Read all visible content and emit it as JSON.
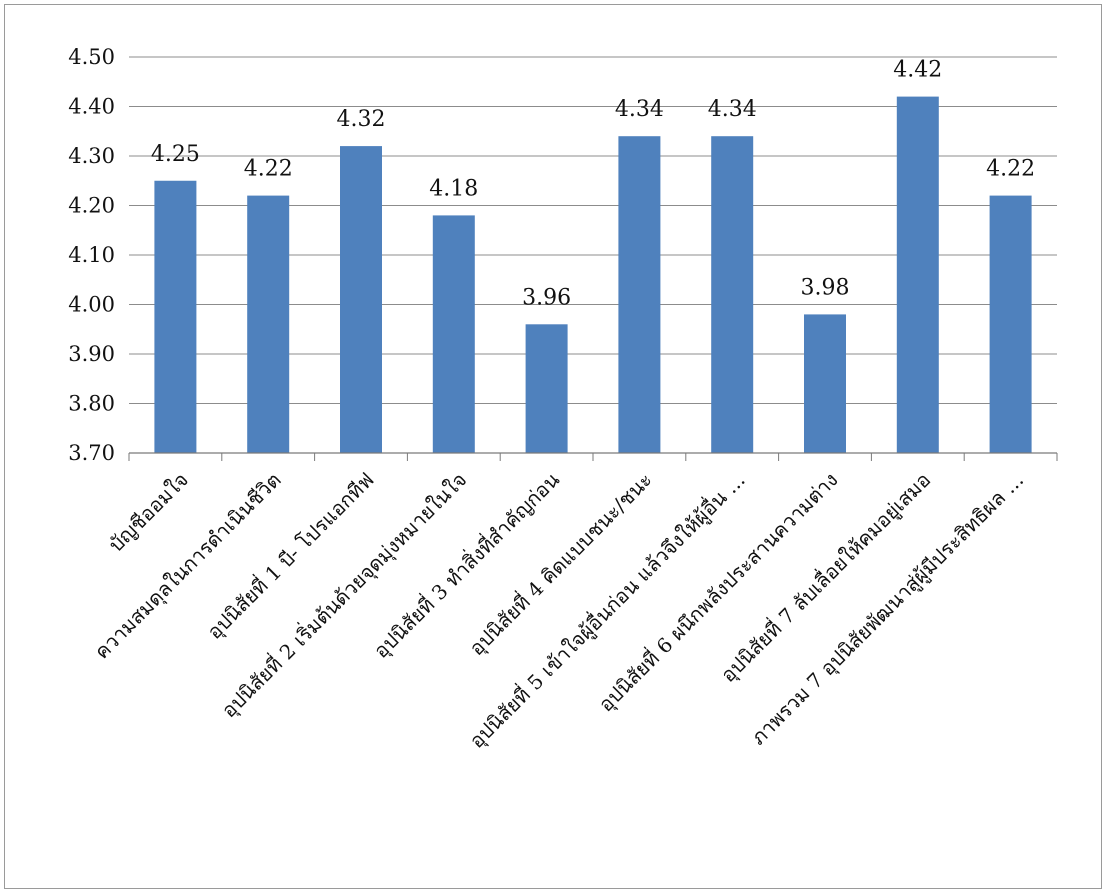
{
  "chart_data": {
    "type": "bar",
    "title": "",
    "xlabel": "",
    "ylabel": "",
    "ylim": [
      3.7,
      4.5
    ],
    "ytick_step": 0.1,
    "yticks": [
      "3.70",
      "3.80",
      "3.90",
      "4.00",
      "4.10",
      "4.20",
      "4.30",
      "4.40",
      "4.50"
    ],
    "grid": true,
    "legend": "none",
    "bar_color": "#4f81bd",
    "grid_color": "#8c8c8c",
    "categories": [
      "บัญชีออมใจ",
      "ความสมดุลในการดำเนินชีวิต",
      "อุปนิสัยที่ 1 บี- โปรแอกทีฟ",
      "อุปนิสัยที่ 2 เริ่มต้นด้วยจุดมุ่งหมายในใจ",
      "อุปนิสัยที่ 3 ทำสิ่งที่สำคัญก่อน",
      "อุปนิสัยที่ 4 คิดแบบชนะ/ชนะ",
      "อุปนิสัยที่ 5 เข้าใจผู้อื่นก่อน แล้วจึงให้ผู้อื่น ...",
      "อุปนิสัยที่ 6 ผนึกพลังประสานความต่าง",
      "อุปนิสัยที่ 7 ลับเลื่อยให้คมอยู่เสมอ",
      "ภาพรวม 7 อุปนิสัยพัฒนาสู่ผู้มีประสิทธิผล ..."
    ],
    "values": [
      4.25,
      4.22,
      4.32,
      4.18,
      3.96,
      4.34,
      4.34,
      3.98,
      4.42,
      4.22
    ],
    "data_labels": [
      "4.25",
      "4.22",
      "4.32",
      "4.18",
      "3.96",
      "4.34",
      "4.34",
      "3.98",
      "4.42",
      "4.22"
    ]
  }
}
